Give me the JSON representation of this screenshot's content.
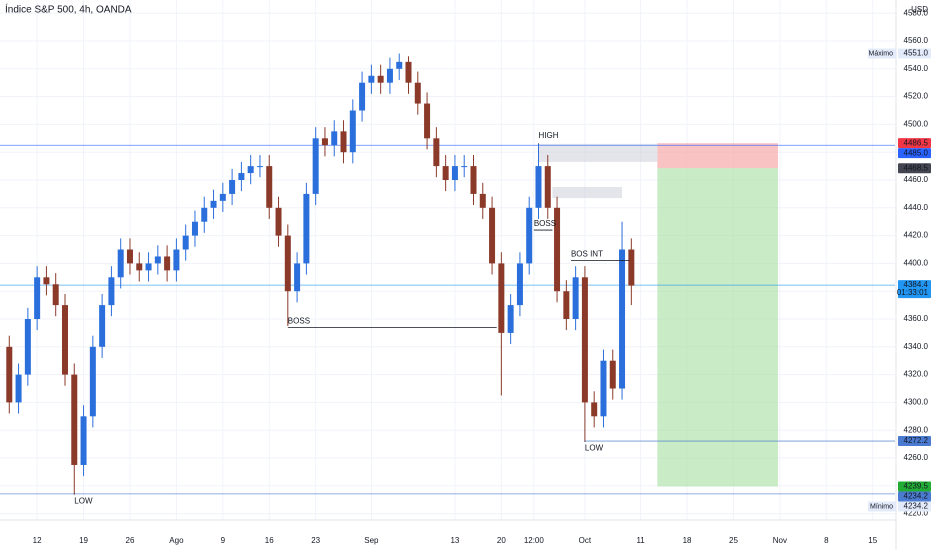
{
  "chart_data": {
    "type": "candlestick",
    "title": "Índice S&P 500, 4h, OANDA",
    "currency": "USD",
    "up_color": "#2a6fdb",
    "down_color": "#8b3a2a",
    "grid": true,
    "xlim": [
      -4,
      92.4
    ],
    "ylim": [
      4215.4,
      4589.5
    ],
    "xticks": [
      {
        "value": 0,
        "label": "12"
      },
      {
        "value": 5,
        "label": "19"
      },
      {
        "value": 10,
        "label": "26"
      },
      {
        "value": 15,
        "label": "Ago"
      },
      {
        "value": 20,
        "label": "9"
      },
      {
        "value": 25,
        "label": "16"
      },
      {
        "value": 30,
        "label": "23"
      },
      {
        "value": 36,
        "label": "Sep"
      },
      {
        "value": 45,
        "label": "13"
      },
      {
        "value": 50,
        "label": "20"
      },
      {
        "value": 53.5,
        "label": "12:00"
      },
      {
        "value": 59,
        "label": "Oct"
      },
      {
        "value": 65,
        "label": "11"
      },
      {
        "value": 70,
        "label": "18"
      },
      {
        "value": 75,
        "label": "25"
      },
      {
        "value": 80,
        "label": "Nov"
      },
      {
        "value": 85,
        "label": "8"
      },
      {
        "value": 90,
        "label": "15"
      }
    ],
    "yticks": [
      {
        "value": 4220,
        "label": "4220.0"
      },
      {
        "value": 4240,
        "label": "4240.0"
      },
      {
        "value": 4260,
        "label": "4260.0"
      },
      {
        "value": 4280,
        "label": "4280.0"
      },
      {
        "value": 4300,
        "label": "4300.0"
      },
      {
        "value": 4320,
        "label": "4320.0"
      },
      {
        "value": 4340,
        "label": "4340.0"
      },
      {
        "value": 4360,
        "label": "4360.0"
      },
      {
        "value": 4380,
        "label": "4380.0"
      },
      {
        "value": 4400,
        "label": "4400.0"
      },
      {
        "value": 4420,
        "label": "4420.0"
      },
      {
        "value": 4440,
        "label": "4440.0"
      },
      {
        "value": 4460,
        "label": "4460.0"
      },
      {
        "value": 4480,
        "label": "4480.0"
      },
      {
        "value": 4500,
        "label": "4500.0"
      },
      {
        "value": 4520,
        "label": "4520.0"
      },
      {
        "value": 4540,
        "label": "4540.0"
      },
      {
        "value": 4560,
        "label": "4560.0"
      },
      {
        "value": 4580,
        "label": "4580.0"
      }
    ],
    "x": [
      -3,
      -2,
      -1,
      0,
      1,
      2,
      3,
      4,
      5,
      6,
      7,
      8,
      9,
      10,
      11,
      12,
      13,
      14,
      15,
      16,
      17,
      18,
      19,
      20,
      21,
      22,
      23,
      24,
      25,
      26,
      27,
      28,
      29,
      30,
      31,
      32,
      33,
      34,
      35,
      36,
      37,
      38,
      39,
      40,
      41,
      42,
      43,
      44,
      45,
      46,
      47,
      48,
      49,
      50,
      51,
      52,
      53,
      54,
      55,
      56,
      57,
      58,
      59,
      60,
      61,
      62,
      63,
      64
    ],
    "open": [
      4340,
      4300,
      4320,
      4360,
      4390,
      4385,
      4370,
      4320,
      4255,
      4290,
      4340,
      4370,
      4390,
      4410,
      4400,
      4395,
      4400,
      4405,
      4395,
      4410,
      4420,
      4430,
      4440,
      4445,
      4450,
      4460,
      4465,
      4470,
      4470,
      4440,
      4420,
      4380,
      4400,
      4450,
      4490,
      4485,
      4495,
      4480,
      4510,
      4530,
      4535,
      4530,
      4540,
      4545,
      4530,
      4515,
      4490,
      4470,
      4460,
      4470,
      4470,
      4450,
      4440,
      4400,
      4350,
      4370,
      4400,
      4440,
      4470,
      4440,
      4380,
      4360,
      4390,
      4300,
      4290,
      4330,
      4310,
      4410
    ],
    "high": [
      4348,
      4328,
      4368,
      4398,
      4398,
      4393,
      4378,
      4328,
      4298,
      4348,
      4378,
      4398,
      4418,
      4418,
      4408,
      4408,
      4413,
      4413,
      4418,
      4428,
      4438,
      4448,
      4453,
      4458,
      4468,
      4473,
      4478,
      4478,
      4478,
      4448,
      4428,
      4408,
      4458,
      4498,
      4498,
      4503,
      4503,
      4518,
      4538,
      4543,
      4543,
      4548,
      4551,
      4549,
      4538,
      4523,
      4498,
      4478,
      4478,
      4478,
      4478,
      4458,
      4448,
      4408,
      4378,
      4408,
      4448,
      4486,
      4478,
      4448,
      4388,
      4398,
      4398,
      4308,
      4338,
      4338,
      4430,
      4418
    ],
    "low": [
      4292,
      4292,
      4312,
      4352,
      4377,
      4362,
      4312,
      4234,
      4247,
      4282,
      4332,
      4362,
      4382,
      4392,
      4387,
      4387,
      4392,
      4387,
      4387,
      4402,
      4412,
      4422,
      4432,
      4437,
      4442,
      4452,
      4457,
      4462,
      4432,
      4412,
      4355,
      4372,
      4392,
      4442,
      4477,
      4477,
      4472,
      4472,
      4502,
      4522,
      4522,
      4522,
      4532,
      4522,
      4507,
      4482,
      4462,
      4452,
      4452,
      4462,
      4442,
      4432,
      4392,
      4305,
      4342,
      4362,
      4392,
      4432,
      4432,
      4372,
      4352,
      4352,
      4272,
      4282,
      4282,
      4302,
      4302,
      4370
    ],
    "close": [
      4300,
      4320,
      4360,
      4390,
      4385,
      4370,
      4320,
      4255,
      4290,
      4340,
      4370,
      4390,
      4410,
      4400,
      4395,
      4400,
      4405,
      4395,
      4410,
      4420,
      4430,
      4440,
      4445,
      4450,
      4460,
      4465,
      4470,
      4470,
      4440,
      4420,
      4380,
      4400,
      4450,
      4490,
      4485,
      4495,
      4480,
      4510,
      4530,
      4535,
      4530,
      4540,
      4545,
      4530,
      4515,
      4490,
      4470,
      4460,
      4470,
      4470,
      4450,
      4440,
      4400,
      4350,
      4370,
      4400,
      4440,
      4470,
      4440,
      4380,
      4360,
      4390,
      4300,
      4290,
      4330,
      4310,
      4410,
      4384
    ],
    "zones": [
      {
        "top": 4486,
        "bottom": 4473,
        "x_start": 54,
        "x_end": 66.8,
        "color": "#d1d4dc"
      },
      {
        "top": 4455,
        "bottom": 4447,
        "x_start": 55.5,
        "x_end": 63,
        "color": "#d1d4dc"
      }
    ],
    "position": {
      "stop": 4486.5,
      "entry": 4468.5,
      "target": 4239.5,
      "x_start": 66.8,
      "x_end": 79.8,
      "loss_color": "#f7a9a9",
      "profit_color": "#a5e0a0"
    },
    "structures": [
      {
        "label": "BOSS",
        "price": 4354,
        "x_start": 27,
        "x_end": 49.5
      },
      {
        "label": "BOSS",
        "price": 4424,
        "x_start": 53.5,
        "x_end": 55.5
      },
      {
        "label": "BOS INT",
        "price": 4402,
        "x_start": 57.5,
        "x_end": 63.8
      }
    ],
    "points": [
      {
        "label": "HIGH",
        "x": 54,
        "price": 4486
      },
      {
        "label": "LOW",
        "x": 59,
        "price": 4272
      },
      {
        "label": "LOW",
        "x": 4,
        "price": 4234
      }
    ],
    "levels": [
      {
        "value": 4551.0,
        "label": "4551.0",
        "note": "Máximo",
        "color": "#e3ebfa",
        "text_color": "#131722"
      },
      {
        "value": 4486.5,
        "label": "4486.5",
        "color": "#f23645",
        "text_color": "#ffffff"
      },
      {
        "value": 4485.0,
        "label": "4485.0",
        "color": "#2962ff",
        "text_color": "#ffffff",
        "line_start": -4
      },
      {
        "value": 4468.5,
        "label": "4468.5",
        "color": "#434651",
        "text_color": "#ffffff"
      },
      {
        "value": 4384.4,
        "label": "4384.4",
        "countdown": "01:33:01",
        "color": "#2196f3",
        "text_color": "#ffffff",
        "line_start": -4
      },
      {
        "value": 4272.2,
        "label": "4272.2",
        "color": "#4a7bd0",
        "text_color": "#ffffff",
        "line_start": 59
      },
      {
        "value": 4239.5,
        "label": "4239.5",
        "color": "#22ab35",
        "text_color": "#ffffff"
      },
      {
        "value": 4234.2,
        "label": "4234.2",
        "color": "#4a7bd0",
        "text_color": "#ffffff",
        "line_start": -4
      },
      {
        "value": 4234.2,
        "label": "4234.2",
        "note": "Mínimo",
        "color": "#e3ebfa",
        "text_color": "#131722"
      }
    ]
  }
}
